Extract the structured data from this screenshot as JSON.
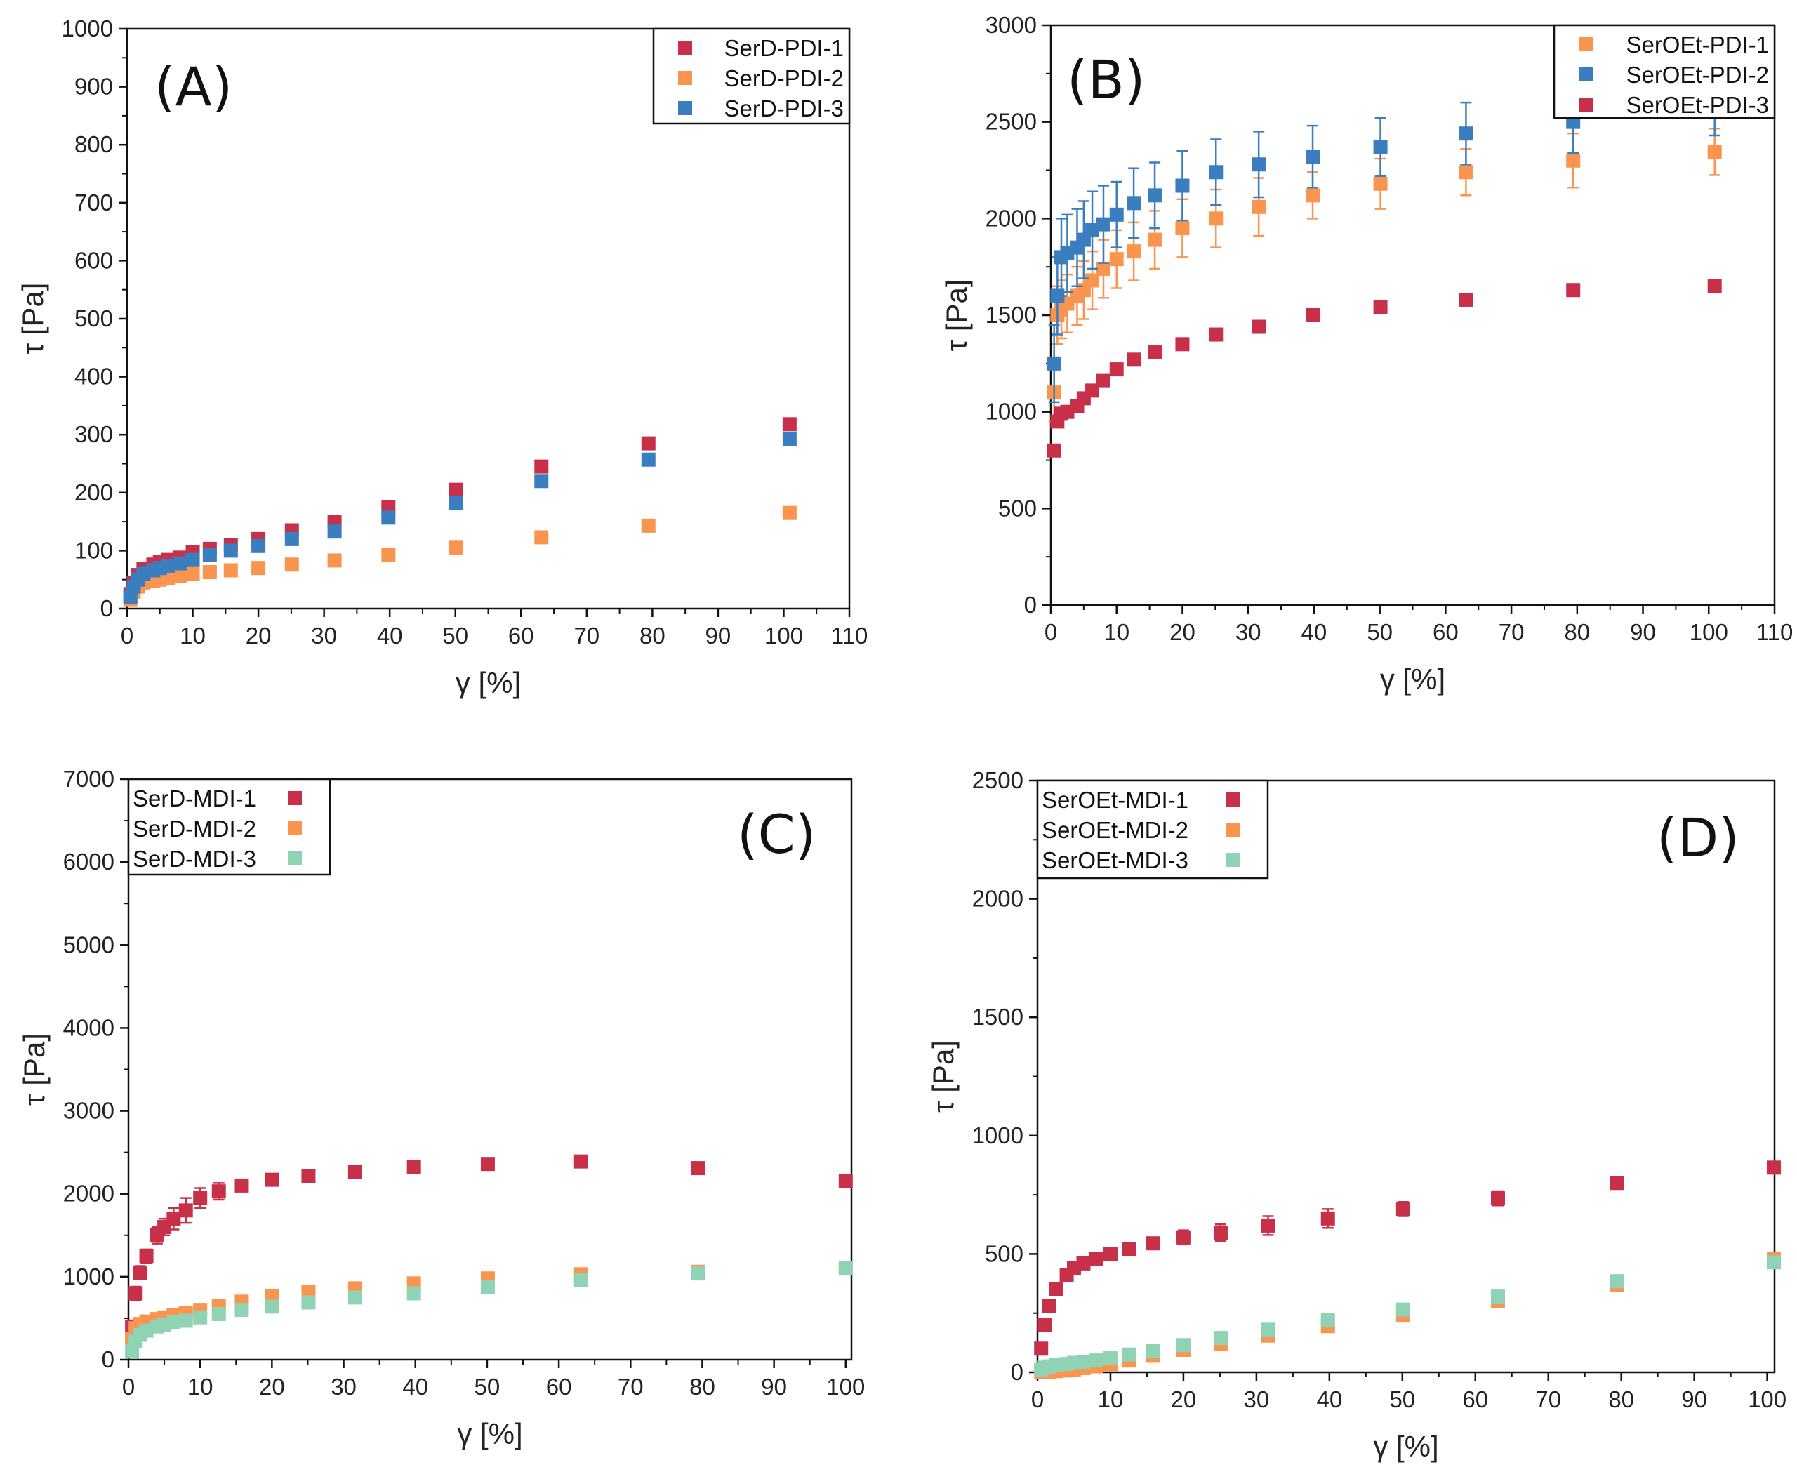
{
  "chart_data": [
    {
      "type": "scatter",
      "panel_label": "(A)",
      "xlabel": "γ [%]",
      "ylabel": "τ [Pa]",
      "xlim": [
        0,
        110
      ],
      "ylim": [
        0,
        1000
      ],
      "xticks": [
        0,
        10,
        20,
        30,
        40,
        50,
        60,
        70,
        80,
        90,
        100,
        110
      ],
      "yticks": [
        0,
        100,
        200,
        300,
        400,
        500,
        600,
        700,
        800,
        900,
        1000
      ],
      "legend_position": "top-right",
      "legend_marker_first": true,
      "x": [
        0.5,
        1,
        1.6,
        2.5,
        4,
        5,
        6.3,
        8,
        10,
        12.6,
        15.8,
        20,
        25.1,
        31.6,
        39.8,
        50.1,
        63.1,
        79.4,
        100.9
      ],
      "series": [
        {
          "name": "SerD-PDI-1",
          "color": "#c8304a",
          "values": [
            25,
            45,
            58,
            68,
            76,
            80,
            84,
            88,
            97,
            103,
            110,
            120,
            135,
            150,
            175,
            205,
            245,
            285,
            318
          ]
        },
        {
          "name": "SerD-PDI-2",
          "color": "#f9954e",
          "values": [
            15,
            28,
            38,
            45,
            48,
            50,
            53,
            56,
            60,
            63,
            66,
            70,
            76,
            83,
            92,
            105,
            123,
            143,
            165
          ]
        },
        {
          "name": "SerD-PDI-3",
          "color": "#3a7ebf",
          "values": [
            20,
            38,
            50,
            60,
            66,
            70,
            74,
            78,
            84,
            92,
            100,
            108,
            120,
            133,
            157,
            182,
            220,
            257,
            293
          ]
        }
      ]
    },
    {
      "type": "scatter",
      "panel_label": "(B)",
      "xlabel": "γ [%]",
      "ylabel": "τ [Pa]",
      "xlim": [
        0,
        110
      ],
      "ylim": [
        0,
        3000
      ],
      "xticks": [
        0,
        10,
        20,
        30,
        40,
        50,
        60,
        70,
        80,
        90,
        100,
        110
      ],
      "yticks": [
        0,
        500,
        1000,
        1500,
        2000,
        2500,
        3000
      ],
      "legend_position": "top-right",
      "legend_marker_first": true,
      "x": [
        0.5,
        1,
        1.6,
        2.5,
        4,
        5,
        6.3,
        8,
        10,
        12.6,
        15.8,
        20,
        25.1,
        31.6,
        39.8,
        50.1,
        63.1,
        79.4,
        100.9
      ],
      "series": [
        {
          "name": "SerOEt-PDI-1",
          "color": "#f9954e",
          "values": [
            1100,
            1500,
            1530,
            1560,
            1600,
            1630,
            1680,
            1740,
            1790,
            1830,
            1890,
            1950,
            2000,
            2060,
            2120,
            2180,
            2240,
            2300,
            2345
          ],
          "error": [
            150,
            150,
            150,
            150,
            150,
            150,
            150,
            150,
            150,
            150,
            150,
            150,
            150,
            150,
            120,
            130,
            120,
            140,
            120
          ]
        },
        {
          "name": "SerOEt-PDI-2",
          "color": "#3a7ebf",
          "values": [
            1250,
            1600,
            1800,
            1820,
            1850,
            1890,
            1940,
            1970,
            2020,
            2080,
            2120,
            2170,
            2240,
            2280,
            2320,
            2370,
            2440,
            2500,
            2560
          ],
          "error": [
            200,
            200,
            200,
            200,
            200,
            200,
            200,
            200,
            170,
            180,
            170,
            180,
            170,
            170,
            160,
            150,
            160,
            160,
            130
          ]
        },
        {
          "name": "SerOEt-PDI-3",
          "color": "#c8304a",
          "values": [
            800,
            950,
            990,
            1000,
            1030,
            1070,
            1110,
            1160,
            1220,
            1270,
            1310,
            1350,
            1400,
            1440,
            1500,
            1540,
            1580,
            1630,
            1650
          ],
          "error": [
            20,
            20,
            20,
            20,
            20,
            20,
            20,
            20,
            20,
            20,
            20,
            20,
            20,
            20,
            30,
            20,
            20,
            20,
            20
          ]
        }
      ]
    },
    {
      "type": "scatter",
      "panel_label": "(C)",
      "xlabel": "γ [%]",
      "ylabel": "τ [Pa]",
      "xlim": [
        0,
        100.8
      ],
      "ylim": [
        0,
        7000
      ],
      "xticks": [
        0,
        10,
        20,
        30,
        40,
        50,
        60,
        70,
        80,
        90,
        100
      ],
      "yticks": [
        0,
        1000,
        2000,
        3000,
        4000,
        5000,
        6000,
        7000
      ],
      "legend_position": "top-left",
      "legend_marker_first": false,
      "x": [
        0.5,
        1,
        1.6,
        2.5,
        4,
        5,
        6.3,
        8,
        10,
        12.6,
        15.8,
        20,
        25.1,
        31.6,
        39.8,
        50.1,
        63.1,
        79.4,
        100
      ],
      "series": [
        {
          "name": "SerD-MDI-1",
          "color": "#c8304a",
          "values": [
            400,
            800,
            1050,
            1250,
            1500,
            1600,
            1700,
            1800,
            1950,
            2030,
            2100,
            2170,
            2210,
            2260,
            2320,
            2360,
            2390,
            2310,
            2150
          ],
          "error": [
            60,
            80,
            80,
            80,
            100,
            100,
            130,
            150,
            120,
            100,
            50,
            50,
            40,
            40,
            40,
            40,
            60,
            60,
            40
          ]
        },
        {
          "name": "SerD-MDI-2",
          "color": "#f9954e",
          "values": [
            250,
            380,
            430,
            460,
            490,
            510,
            540,
            560,
            600,
            650,
            700,
            770,
            820,
            860,
            920,
            980,
            1030,
            1060,
            1100
          ]
        },
        {
          "name": "SerD-MDI-3",
          "color": "#8fd3b4",
          "values": [
            100,
            220,
            300,
            350,
            400,
            420,
            450,
            470,
            510,
            550,
            600,
            640,
            690,
            750,
            800,
            880,
            960,
            1040,
            1100
          ]
        }
      ]
    },
    {
      "type": "scatter",
      "panel_label": "(D)",
      "xlabel": "γ [%]",
      "ylabel": "τ [Pa]",
      "xlim": [
        0,
        101
      ],
      "ylim": [
        0,
        2500
      ],
      "xticks": [
        0,
        10,
        20,
        30,
        40,
        50,
        60,
        70,
        80,
        90,
        100
      ],
      "yticks": [
        0,
        500,
        1000,
        1500,
        2000,
        2500
      ],
      "legend_position": "top-left",
      "legend_marker_first": false,
      "x": [
        0.5,
        1,
        1.6,
        2.5,
        4,
        5,
        6.3,
        8,
        10,
        12.6,
        15.8,
        20,
        25.1,
        31.6,
        39.8,
        50.1,
        63.1,
        79.4,
        100.9
      ],
      "series": [
        {
          "name": "SerOEt-MDI-1",
          "color": "#c8304a",
          "values": [
            100,
            200,
            280,
            350,
            410,
            440,
            460,
            480,
            500,
            520,
            545,
            570,
            590,
            620,
            650,
            690,
            735,
            800,
            865
          ],
          "error": [
            10,
            10,
            10,
            10,
            10,
            10,
            10,
            10,
            15,
            15,
            25,
            30,
            35,
            40,
            40,
            30,
            30,
            25,
            20
          ]
        },
        {
          "name": "SerOEt-MDI-2",
          "color": "#f9954e",
          "values": [
            0,
            0,
            2,
            5,
            8,
            12,
            18,
            25,
            35,
            50,
            70,
            95,
            120,
            155,
            195,
            240,
            300,
            370,
            480
          ]
        },
        {
          "name": "SerOEt-MDI-3",
          "color": "#8fd3b4",
          "values": [
            10,
            20,
            25,
            30,
            35,
            40,
            45,
            50,
            60,
            75,
            90,
            115,
            145,
            180,
            220,
            265,
            320,
            385,
            465
          ]
        }
      ]
    }
  ]
}
